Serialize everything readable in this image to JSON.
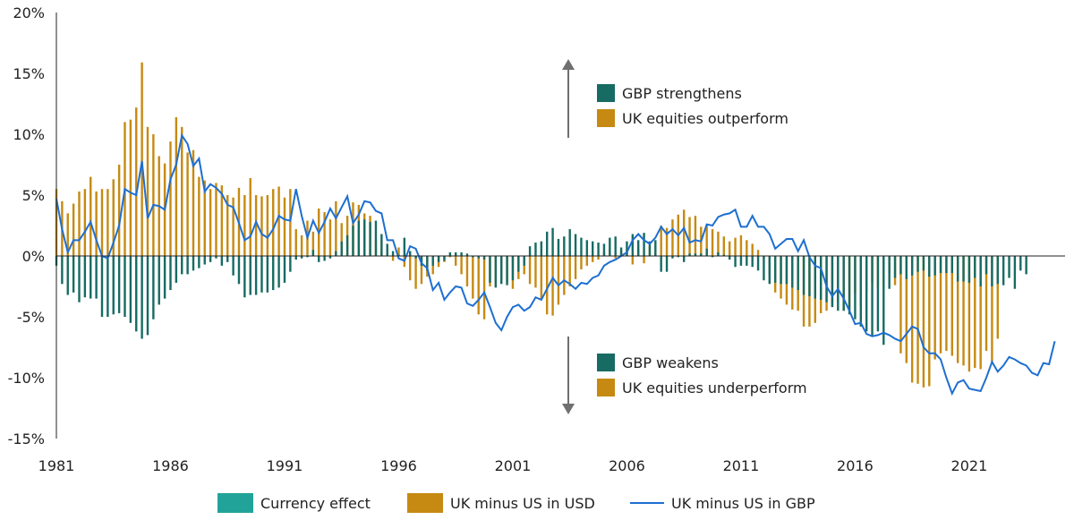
{
  "chart_data": {
    "type": "bar",
    "title": "",
    "xlabel": "",
    "ylabel": "",
    "ylim": [
      -15,
      20
    ],
    "yticks": [
      -15,
      -10,
      -5,
      0,
      5,
      10,
      15,
      20
    ],
    "ytick_labels": [
      "-15%",
      "-10%",
      "-5%",
      "0%",
      "5%",
      "10%",
      "15%",
      "20%"
    ],
    "xlim": [
      1981,
      2025.2
    ],
    "xticks": [
      1981,
      1986,
      1991,
      1996,
      2001,
      2006,
      2011,
      2016,
      2021
    ],
    "xtick_labels": [
      "1981",
      "1986",
      "1991",
      "1996",
      "2001",
      "2006",
      "2011",
      "2016",
      "2021"
    ],
    "grid": false,
    "legend_position": "bottom",
    "colors": {
      "currency": "#176B63",
      "usd": "#C68A12",
      "gbp_line": "#1D6FD1",
      "legend_currency": "#22A39A",
      "arrow": "#6F6F6F"
    },
    "legend": [
      {
        "key": "currency",
        "label": "Currency effect"
      },
      {
        "key": "usd",
        "label": "UK minus US in USD"
      },
      {
        "key": "gbp",
        "label": "UK minus US in GBP"
      }
    ],
    "annotations": {
      "up": [
        {
          "key": "currency",
          "label": "GBP strengthens"
        },
        {
          "key": "usd",
          "label": "UK equities outperform"
        }
      ],
      "down": [
        {
          "key": "currency",
          "label": "GBP weakens"
        },
        {
          "key": "usd",
          "label": "UK equities underperform"
        }
      ]
    },
    "time_step": 0.25,
    "series": [
      {
        "name": "UK minus US in USD",
        "key": "usd",
        "x_start": 1981,
        "values": [
          5.5,
          4.5,
          3.5,
          4.3,
          5.3,
          5.5,
          6.5,
          5.3,
          5.5,
          5.5,
          6.3,
          7.5,
          11,
          11.2,
          12.2,
          15.9,
          10.6,
          10,
          8.2,
          7.6,
          9.4,
          11.4,
          10.6,
          8.5,
          8.7,
          6.5,
          6.2,
          5.5,
          6,
          5.8,
          5,
          4.8,
          5.6,
          5,
          6.4,
          5,
          4.9,
          5,
          5.5,
          5.7,
          4.8,
          5.5,
          2.2,
          1.7,
          2.9,
          2,
          3.9,
          3.6,
          3,
          4.5,
          2.7,
          3.3,
          4.4,
          4.2,
          3.5,
          3.3,
          1.3,
          1.3,
          0.2,
          -0.4,
          0.7,
          -0.9,
          -2,
          -2.7,
          -2.3,
          -1.7,
          -1.5,
          -0.9,
          -0.5,
          -0.1,
          -0.8,
          -1.5,
          -2.5,
          -3.5,
          -4.8,
          -5.2,
          -2.5,
          -2.3,
          -1.9,
          -2.2,
          -2.7,
          -1.9,
          -1.5,
          -2.3,
          -2.6,
          -3.5,
          -4.8,
          -4.9,
          -4,
          -3.2,
          -2.5,
          -1.9,
          -1.1,
          -0.8,
          -0.5,
          -0.3,
          0.3,
          0.6,
          -0.2,
          0.4,
          0.5,
          -0.7,
          0.6,
          -0.6,
          0.8,
          0.4,
          2.5,
          2.3,
          3,
          3.4,
          3.8,
          3.2,
          3.3,
          2.4,
          2.5,
          2.2,
          2,
          1.6,
          1.2,
          1.5,
          1.7,
          1.3,
          1,
          0.5,
          -0.2,
          -1.5,
          -3,
          -3.5,
          -4,
          -4.4,
          -4.5,
          -5.8,
          -5.8,
          -5.5,
          -4.7,
          -4.5,
          -4.1,
          -3.7,
          -4.5,
          -4.5,
          -3.1,
          -4.1,
          -3,
          -2.2,
          -2.6,
          -2.5,
          -1.4,
          -2.4,
          -8,
          -8.8,
          -10.4,
          -10.5,
          -10.8,
          -10.7,
          -8.5,
          -8,
          -7.8,
          -8.2,
          -8.8,
          -9,
          -9.5,
          -9.2,
          -9.3,
          -7.8,
          -8.7,
          -6.8
        ]
      },
      {
        "name": "Currency effect",
        "key": "currency",
        "x_start": 1981,
        "values": [
          -0.8,
          -2.3,
          -3.2,
          -3,
          -3.8,
          -3.4,
          -3.5,
          -3.5,
          -5,
          -5,
          -4.8,
          -4.7,
          -5,
          -5.5,
          -6.2,
          -6.8,
          -6.5,
          -5.2,
          -4,
          -3.5,
          -2.8,
          -2.2,
          -1.5,
          -1.5,
          -1.2,
          -1,
          -0.7,
          -0.5,
          -0.2,
          -0.8,
          -0.5,
          -1.6,
          -2.3,
          -3.4,
          -3.2,
          -3.2,
          -3,
          -3,
          -2.8,
          -2.6,
          -2.2,
          -1.3,
          -0.3,
          -0.2,
          -0.1,
          0.5,
          -0.5,
          -0.4,
          -0.2,
          0.4,
          1.2,
          1.7,
          2.5,
          2.9,
          3,
          2.8,
          2.9,
          1.8,
          1,
          0.4,
          0.1,
          1.5,
          0.4,
          -0.2,
          -0.8,
          -1.2,
          -0.8,
          -0.5,
          -0.4,
          0.3,
          0.3,
          0.3,
          0.2,
          -0.1,
          -0.2,
          -0.3,
          -2.2,
          -2.6,
          -2.3,
          -2.4,
          -2,
          -1.3,
          -0.8,
          0.8,
          1.1,
          1.2,
          2,
          2.3,
          1.4,
          1.6,
          2.2,
          1.8,
          1.5,
          1.3,
          1.2,
          1.1,
          1,
          1.5,
          1.6,
          0.7,
          1.2,
          1.8,
          1.3,
          1.9,
          1.2,
          1.3,
          -1.3,
          -1.3,
          -0.2,
          -0.1,
          -0.5,
          0.2,
          0.2,
          0.2,
          0.6,
          -0.1,
          0.3,
          0.1,
          -0.3,
          -0.9,
          -0.8,
          -0.8,
          -0.9,
          -1.2,
          -2,
          -2.3,
          -2.2,
          -2.3,
          -2.3,
          -2.6,
          -2.8,
          -3.2,
          -3.3,
          -3.5,
          -3.6,
          -3.8,
          -4.2,
          -4.5,
          -4.5,
          -4.8,
          -5.2,
          -5.8,
          -6.2,
          -6.6,
          -6.2,
          -7.3,
          -2.7,
          -1.8,
          -1.5,
          -1.9,
          -1.6,
          -1.3,
          -1.2,
          -1.7,
          -1.6,
          -1.4,
          -1.4,
          -1.4,
          -2.1,
          -2.1,
          -2.2,
          -1.8,
          -2.5,
          -1.5,
          -2.5,
          -2.3,
          -2.4,
          -1.8,
          -2.7,
          -1.2,
          -1.5
        ]
      },
      {
        "name": "UK minus US in GBP",
        "key": "gbp",
        "x_start": 1981,
        "values": [
          4.7,
          2.2,
          0.3,
          1.3,
          1.3,
          2,
          2.8,
          1.3,
          0,
          -0.2,
          1.1,
          2.5,
          5.5,
          5.2,
          5,
          7.8,
          3.1,
          4.2,
          4.1,
          3.8,
          6.3,
          7.5,
          9.9,
          9.2,
          7.4,
          8,
          5.3,
          5.9,
          5.6,
          5.1,
          4.2,
          4,
          2.7,
          1.3,
          1.6,
          2.8,
          1.8,
          1.5,
          2.2,
          3.3,
          3,
          2.9,
          5.5,
          3.3,
          1.5,
          2.9,
          1.9,
          2.8,
          3.9,
          3.1,
          4,
          4.9,
          2.7,
          3.4,
          4.5,
          4.4,
          3.7,
          3.5,
          1.3,
          1.3,
          -0.2,
          -0.4,
          0.8,
          0.6,
          -0.6,
          -1,
          -2.8,
          -2.2,
          -3.6,
          -3,
          -2.5,
          -2.6,
          -3.9,
          -4.1,
          -3.6,
          -3,
          -4.2,
          -5.5,
          -6.1,
          -5,
          -4.2,
          -4,
          -4.5,
          -4.2,
          -3.4,
          -3.6,
          -2.7,
          -1.8,
          -2.4,
          -2,
          -2.3,
          -2.7,
          -2.2,
          -2.3,
          -1.8,
          -1.6,
          -0.8,
          -0.5,
          -0.3,
          0,
          0.3,
          1.3,
          1.8,
          1.3,
          1,
          1.5,
          2.4,
          1.8,
          2.2,
          1.7,
          2.3,
          1.1,
          1.3,
          1.2,
          2.6,
          2.5,
          3.2,
          3.4,
          3.5,
          3.8,
          2.4,
          2.4,
          3.3,
          2.4,
          2.4,
          1.8,
          0.6,
          1,
          1.4,
          1.4,
          0.4,
          1.3,
          -0.1,
          -0.8,
          -1,
          -2.5,
          -3.3,
          -2.7,
          -3.5,
          -4.5,
          -5.6,
          -5.5,
          -6.4,
          -6.6,
          -6.5,
          -6.3,
          -6.5,
          -6.8,
          -7,
          -6.4,
          -5.8,
          -6,
          -7.5,
          -8,
          -8,
          -8.5,
          -10,
          -11.3,
          -10.4,
          -10.2,
          -10.9,
          -11,
          -11.1,
          -10,
          -8.7,
          -9.5,
          -9,
          -8.3,
          -8.5,
          -8.8,
          -9,
          -9.6,
          -9.8,
          -8.8,
          -8.9,
          -7
        ]
      }
    ]
  }
}
